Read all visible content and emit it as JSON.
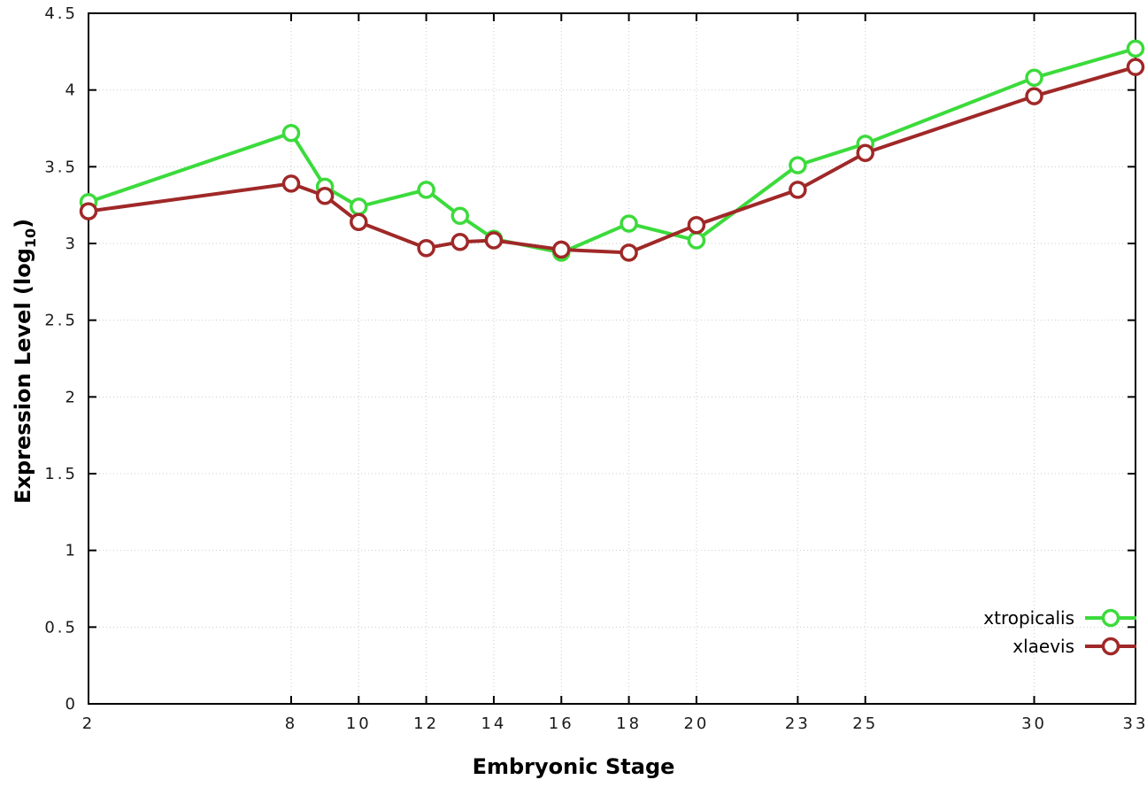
{
  "chart_data": {
    "type": "line",
    "title": "",
    "xlabel": "Embryonic Stage",
    "ylabel": "Expression Level (log10)",
    "ylabel_parts": {
      "main": "Expression Level (log",
      "sub": "10",
      "close": ")"
    },
    "xlim": [
      2,
      33
    ],
    "ylim": [
      0,
      4.5
    ],
    "x_ticks": [
      2,
      8,
      10,
      12,
      14,
      16,
      18,
      20,
      23,
      25,
      30,
      33
    ],
    "x_tick_labels": [
      "2",
      "8",
      "10",
      "12",
      "14",
      "16",
      "18",
      "20",
      "23",
      "25",
      "30",
      "33"
    ],
    "y_ticks": [
      0,
      0.5,
      1,
      1.5,
      2,
      2.5,
      3,
      3.5,
      4,
      4.5
    ],
    "y_tick_labels": [
      "0",
      "0.5",
      "1",
      "1.5",
      "2",
      "2.5",
      "3",
      "3.5",
      "4",
      "4.5"
    ],
    "grid": true,
    "legend_position": "bottom-right",
    "x": [
      2,
      8,
      9,
      10,
      12,
      13,
      14,
      16,
      18,
      20,
      23,
      25,
      30,
      33
    ],
    "series": [
      {
        "name": "xtropicalis",
        "color": "#3bdb3b",
        "values": [
          3.27,
          3.72,
          3.37,
          3.24,
          3.35,
          3.18,
          3.03,
          2.94,
          3.13,
          3.02,
          3.51,
          3.65,
          4.08,
          4.27
        ]
      },
      {
        "name": "xlaevis",
        "color": "#a02828",
        "values": [
          3.21,
          3.39,
          3.31,
          3.14,
          2.97,
          3.01,
          3.02,
          2.96,
          2.94,
          3.12,
          3.35,
          3.59,
          3.96,
          4.15
        ]
      }
    ],
    "style": {
      "grid_color": "#cccccc",
      "border_color": "#000000",
      "marker_fill": "#ffffff",
      "line_width": 4,
      "marker_radius": 8.5,
      "marker_stroke": 3.5
    }
  }
}
